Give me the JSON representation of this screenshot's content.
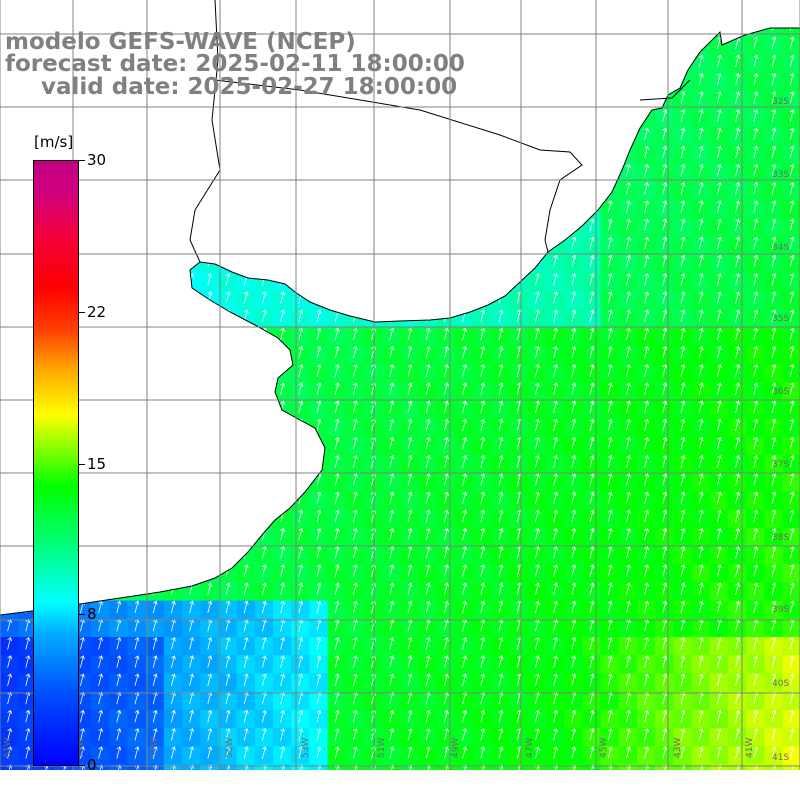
{
  "title": {
    "line1": "modelo GEFS-WAVE (NCEP)",
    "line2": "forecast date: 2025-02-11 18:00:00",
    "line3": "valid date: 2025-02-27 18:00:00"
  },
  "colorbar": {
    "unit": "[m/s]",
    "ticks": [
      "30",
      "22",
      "15",
      "8",
      "0"
    ],
    "colors": [
      "#0000ff",
      "#00ffff",
      "#00ff00",
      "#ffff00",
      "#ff0000",
      "#c00080"
    ]
  },
  "map": {
    "lon_labels": [
      "61W",
      "59W",
      "57W",
      "55W",
      "53W",
      "51W",
      "49W",
      "47W",
      "45W",
      "43W",
      "41W"
    ],
    "lat_labels": [
      "32S",
      "33S",
      "34S",
      "35S",
      "36S",
      "37S",
      "38S",
      "39S",
      "40S",
      "41S"
    ],
    "wind_direction": "from southwest",
    "land_color": "#ffffff",
    "grid_color": "#808080",
    "coastline_color": "#000000"
  }
}
